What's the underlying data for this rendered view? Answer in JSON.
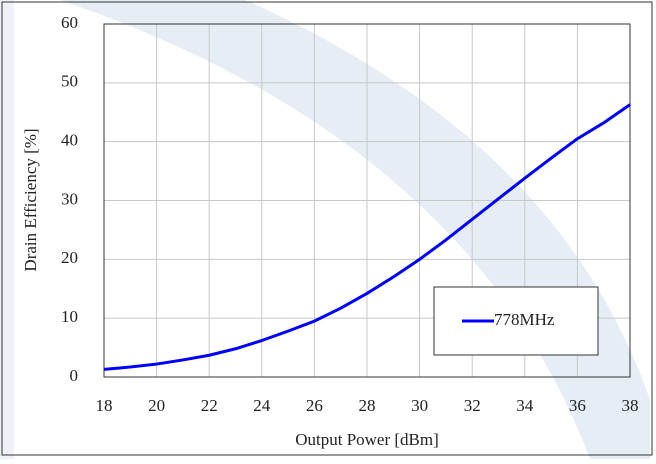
{
  "chart_data": {
    "type": "line",
    "x_label": "Output Power [dBm]",
    "y_label": "Drain Efficiency [%]",
    "x": [
      18,
      19,
      20,
      21,
      22,
      23,
      24,
      25,
      26,
      27,
      28,
      29,
      30,
      31,
      32,
      33,
      34,
      35,
      36,
      37,
      38
    ],
    "series": [
      {
        "name": "778MHz",
        "color": "#0000ff",
        "values": [
          1.3,
          1.7,
          2.2,
          2.9,
          3.7,
          4.8,
          6.2,
          7.8,
          9.5,
          11.7,
          14.2,
          17,
          20,
          23.3,
          26.8,
          30.3,
          33.8,
          37.2,
          40.5,
          43.2,
          46.3
        ]
      }
    ],
    "xlim": [
      18,
      38
    ],
    "xticks": [
      18,
      20,
      22,
      24,
      26,
      28,
      30,
      32,
      34,
      36,
      38
    ],
    "ylim": [
      0,
      60
    ],
    "yticks": [
      0,
      10,
      20,
      30,
      40,
      50,
      60
    ],
    "grid": true,
    "legend": "lower right"
  }
}
